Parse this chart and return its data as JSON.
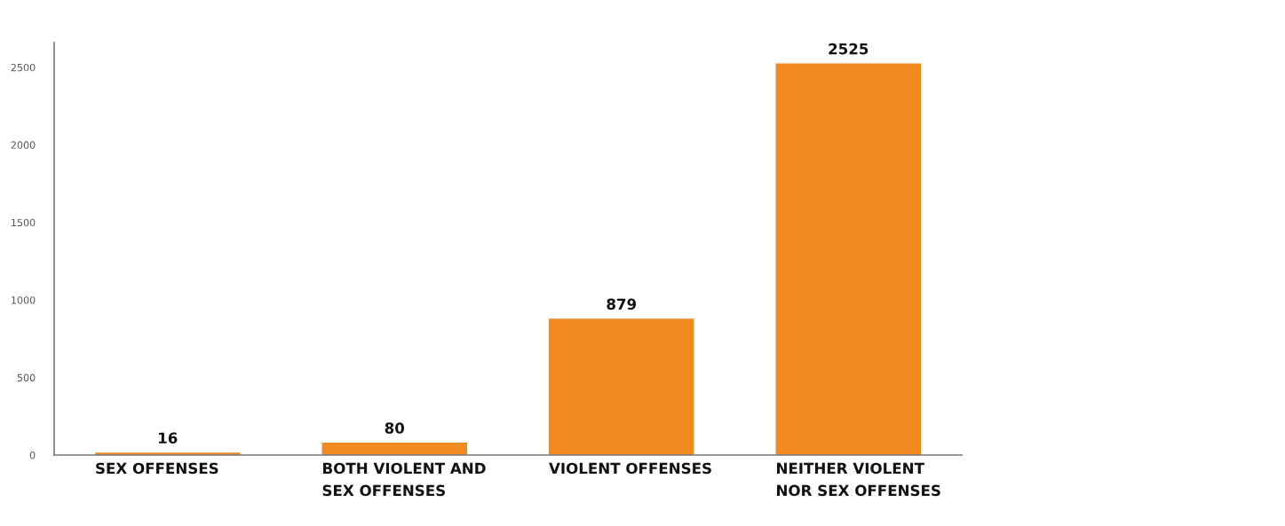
{
  "chart_data": {
    "type": "bar",
    "categories": [
      "SEX OFFENSES",
      "BOTH VIOLENT AND\nSEX OFFENSES",
      "VIOLENT OFFENSES",
      "NEITHER VIOLENT\nNOR SEX OFFENSES"
    ],
    "values": [
      16,
      80,
      879,
      2525
    ],
    "color": "#f28a22",
    "ylim": [
      0,
      2660
    ],
    "yticks": [
      0,
      500,
      1000,
      1500,
      2000,
      2500
    ],
    "grid": false,
    "data_labels": true
  }
}
